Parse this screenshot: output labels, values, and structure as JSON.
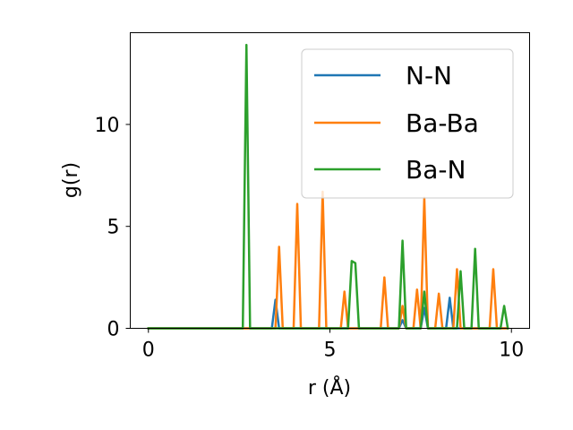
{
  "chart_data": {
    "type": "line",
    "title": "",
    "xlabel": "r (Å)",
    "ylabel": "g(r)",
    "xlim": [
      -0.5,
      10.5
    ],
    "ylim": [
      0,
      14.5
    ],
    "xticks": [
      0,
      5,
      10
    ],
    "xtick_labels": [
      "0",
      "5",
      "10"
    ],
    "yticks": [
      0,
      5,
      10
    ],
    "ytick_labels": [
      "0",
      "5",
      "10"
    ],
    "grid": false,
    "legend_position": "upper right",
    "series": [
      {
        "name": "N-N",
        "color": "#1f77b4",
        "points": [
          [
            0,
            0
          ],
          [
            3.4,
            0
          ],
          [
            3.5,
            1.4
          ],
          [
            3.6,
            0
          ],
          [
            6.9,
            0
          ],
          [
            7.0,
            0.4
          ],
          [
            7.1,
            0
          ],
          [
            7.5,
            0
          ],
          [
            7.6,
            1.0
          ],
          [
            7.7,
            0
          ],
          [
            8.2,
            0
          ],
          [
            8.3,
            1.5
          ],
          [
            8.4,
            0
          ],
          [
            9.9,
            0
          ]
        ]
      },
      {
        "name": "Ba-Ba",
        "color": "#ff7f0e",
        "points": [
          [
            0,
            0
          ],
          [
            3.5,
            0
          ],
          [
            3.6,
            4.0
          ],
          [
            3.7,
            0
          ],
          [
            4.0,
            0
          ],
          [
            4.1,
            6.1
          ],
          [
            4.2,
            0
          ],
          [
            4.7,
            0
          ],
          [
            4.8,
            6.7
          ],
          [
            4.9,
            0
          ],
          [
            5.3,
            0
          ],
          [
            5.4,
            1.8
          ],
          [
            5.5,
            0
          ],
          [
            6.4,
            0
          ],
          [
            6.5,
            2.5
          ],
          [
            6.6,
            0
          ],
          [
            6.9,
            0
          ],
          [
            7.0,
            1.1
          ],
          [
            7.1,
            0
          ],
          [
            7.3,
            0
          ],
          [
            7.4,
            1.9
          ],
          [
            7.5,
            0
          ],
          [
            7.6,
            6.4
          ],
          [
            7.7,
            0
          ],
          [
            7.9,
            0
          ],
          [
            8.0,
            1.7
          ],
          [
            8.1,
            0
          ],
          [
            8.4,
            0
          ],
          [
            8.5,
            2.9
          ],
          [
            8.6,
            0
          ],
          [
            9.4,
            0
          ],
          [
            9.5,
            2.9
          ],
          [
            9.6,
            0
          ],
          [
            9.9,
            0
          ]
        ]
      },
      {
        "name": "Ba-N",
        "color": "#2ca02c",
        "points": [
          [
            0,
            0
          ],
          [
            2.6,
            0
          ],
          [
            2.7,
            13.9
          ],
          [
            2.8,
            0
          ],
          [
            5.5,
            0
          ],
          [
            5.6,
            3.3
          ],
          [
            5.7,
            3.2
          ],
          [
            5.8,
            0
          ],
          [
            6.9,
            0
          ],
          [
            7.0,
            4.3
          ],
          [
            7.1,
            0
          ],
          [
            7.5,
            0
          ],
          [
            7.6,
            1.8
          ],
          [
            7.7,
            0
          ],
          [
            8.5,
            0
          ],
          [
            8.6,
            2.8
          ],
          [
            8.7,
            0
          ],
          [
            8.9,
            0
          ],
          [
            9.0,
            3.9
          ],
          [
            9.1,
            0
          ],
          [
            9.7,
            0
          ],
          [
            9.8,
            1.1
          ],
          [
            9.9,
            0
          ]
        ]
      }
    ]
  }
}
